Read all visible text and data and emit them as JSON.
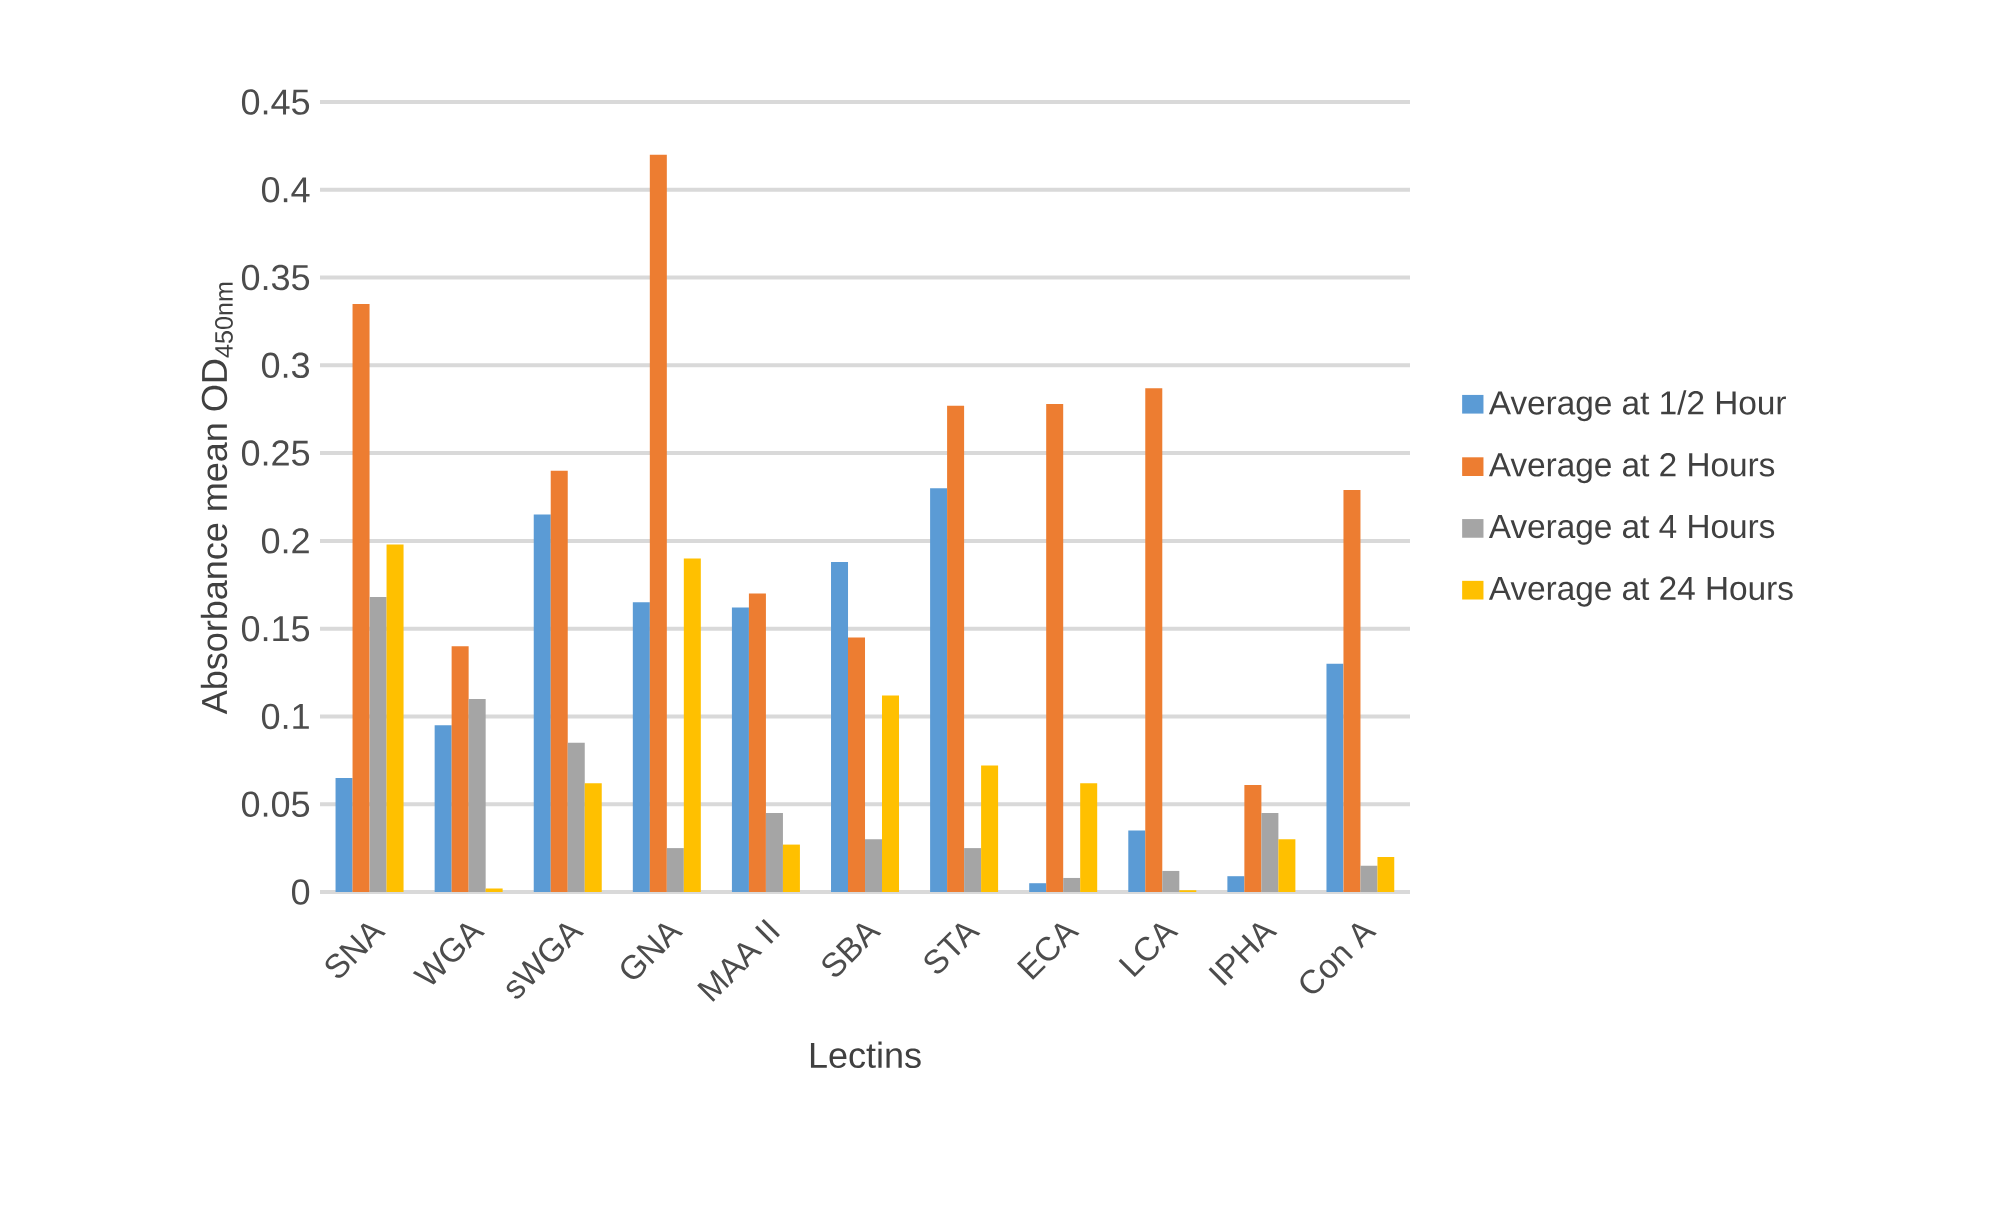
{
  "chart_data": {
    "type": "bar",
    "xlabel": "Lectins",
    "ylabel": "Absorbance mean OD$_{450nm}$",
    "categories": [
      "SNA",
      "WGA",
      "sWGA",
      "GNA",
      "MAA II",
      "SBA",
      "STA",
      "ECA",
      "LCA",
      "IPHA",
      "Con A"
    ],
    "series": [
      {
        "name": "Average at 1/2 Hour",
        "color": "#5b9bd5",
        "values": [
          0.065,
          0.095,
          0.215,
          0.165,
          0.162,
          0.188,
          0.23,
          0.005,
          0.035,
          0.009,
          0.13
        ]
      },
      {
        "name": "Average at  2 Hours",
        "color": "#ed7d31",
        "values": [
          0.335,
          0.14,
          0.24,
          0.42,
          0.17,
          0.145,
          0.277,
          0.278,
          0.287,
          0.061,
          0.229
        ]
      },
      {
        "name": "Average at 4 Hours",
        "color": "#a5a5a5",
        "values": [
          0.168,
          0.11,
          0.085,
          0.025,
          0.045,
          0.03,
          0.025,
          0.008,
          0.012,
          0.045,
          0.015
        ]
      },
      {
        "name": "Average at 24 Hours",
        "color": "#ffc000",
        "values": [
          0.198,
          0.002,
          0.062,
          0.19,
          0.027,
          0.112,
          0.072,
          0.062,
          0.001,
          0.03,
          0.02
        ]
      }
    ],
    "ylim": [
      0,
      0.45
    ],
    "yticks": [
      0,
      0.05,
      0.1,
      0.15,
      0.2,
      0.25,
      0.3,
      0.35,
      0.4,
      0.45
    ],
    "grid": "y",
    "legend": "right"
  }
}
